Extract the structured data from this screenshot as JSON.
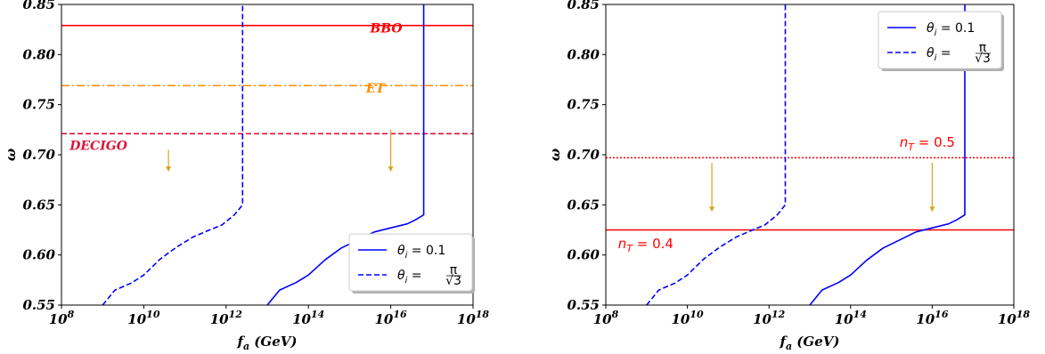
{
  "chart_data": [
    {
      "type": "line",
      "xlabel": "f_a (GeV)",
      "xlabel_main": "f",
      "xlabel_sub": "a",
      "xlabel_unit": "(GeV)",
      "ylabel": "ω",
      "x_scale": "log",
      "xlim": [
        100000000.0,
        1e+18
      ],
      "ylim": [
        0.55,
        0.85
      ],
      "x_ticks": [
        {
          "exp": 8,
          "base": "10",
          "power": "8"
        },
        {
          "exp": 10,
          "base": "10",
          "power": "10"
        },
        {
          "exp": 12,
          "base": "10",
          "power": "12"
        },
        {
          "exp": 14,
          "base": "10",
          "power": "14"
        },
        {
          "exp": 16,
          "base": "10",
          "power": "16"
        },
        {
          "exp": 18,
          "base": "10",
          "power": "18"
        }
      ],
      "y_ticks": [
        "0.55",
        "0.60",
        "0.65",
        "0.70",
        "0.75",
        "0.80",
        "0.85"
      ],
      "y_tick_values": [
        0.55,
        0.6,
        0.65,
        0.7,
        0.75,
        0.8,
        0.85
      ],
      "legend_position": "lower right",
      "series": [
        {
          "name": "θ_i = 0.1",
          "label_main": "θ",
          "label_sub": "i",
          "label_rest": " = 0.1",
          "color": "#0000ff",
          "style": "solid",
          "points": [
            [
              13.0,
              0.55
            ],
            [
              13.3,
              0.565
            ],
            [
              13.7,
              0.5725
            ],
            [
              14.0,
              0.58
            ],
            [
              14.4,
              0.595
            ],
            [
              14.8,
              0.607
            ],
            [
              15.2,
              0.615
            ],
            [
              15.6,
              0.623
            ],
            [
              16.0,
              0.627
            ],
            [
              16.4,
              0.631
            ],
            [
              16.6,
              0.635
            ],
            [
              16.8,
              0.64
            ],
            [
              16.8,
              0.85
            ]
          ],
          "x_is_log10": true
        },
        {
          "name": "θ_i = π/√3",
          "label_main": "θ",
          "label_sub": "i",
          "label_rest": " = ",
          "label_frac_num": "π",
          "label_frac_den": "√3",
          "color": "#0000ff",
          "style": "dashed",
          "points": [
            [
              9.0,
              0.55
            ],
            [
              9.3,
              0.565
            ],
            [
              9.7,
              0.572
            ],
            [
              10.0,
              0.58
            ],
            [
              10.4,
              0.596
            ],
            [
              10.8,
              0.608
            ],
            [
              11.2,
              0.618
            ],
            [
              11.6,
              0.625
            ],
            [
              11.9,
              0.63
            ],
            [
              12.2,
              0.64
            ],
            [
              12.4,
              0.65
            ],
            [
              12.4,
              0.85
            ]
          ],
          "x_is_log10": true
        }
      ],
      "hlines": [
        {
          "name": "BBO",
          "y": 0.829,
          "color": "#ff0000",
          "style": "solid",
          "label": "BBO",
          "label_x_log10": 15.5,
          "label_y": 0.822
        },
        {
          "name": "ET",
          "y": 0.769,
          "color": "#ff8c00",
          "style": "dashdot",
          "label": "ET",
          "label_x_log10": 15.4,
          "label_y": 0.762
        },
        {
          "name": "DECIGO",
          "y": 0.721,
          "color": "#dc143c",
          "style": "dashed",
          "label": "DECIGO",
          "label_x_log10": 8.2,
          "label_y": 0.705
        }
      ],
      "arrows": [
        {
          "x_log10": 10.6,
          "y_from": 0.705,
          "y_to": 0.683,
          "color": "#daa520"
        },
        {
          "x_log10": 16.0,
          "y_from": 0.725,
          "y_to": 0.683,
          "color": "#daa520"
        }
      ]
    },
    {
      "type": "line",
      "xlabel": "f_a (GeV)",
      "xlabel_main": "f",
      "xlabel_sub": "a",
      "xlabel_unit": "(GeV)",
      "ylabel": "ω",
      "x_scale": "log",
      "xlim": [
        100000000.0,
        1e+18
      ],
      "ylim": [
        0.55,
        0.85
      ],
      "x_ticks": [
        {
          "exp": 8,
          "base": "10",
          "power": "8"
        },
        {
          "exp": 10,
          "base": "10",
          "power": "10"
        },
        {
          "exp": 12,
          "base": "10",
          "power": "12"
        },
        {
          "exp": 14,
          "base": "10",
          "power": "14"
        },
        {
          "exp": 16,
          "base": "10",
          "power": "16"
        },
        {
          "exp": 18,
          "base": "10",
          "power": "18"
        }
      ],
      "y_ticks": [
        "0.55",
        "0.60",
        "0.65",
        "0.70",
        "0.75",
        "0.80",
        "0.85"
      ],
      "y_tick_values": [
        0.55,
        0.6,
        0.65,
        0.7,
        0.75,
        0.8,
        0.85
      ],
      "legend_position": "upper right",
      "series": [
        {
          "name": "θ_i = 0.1",
          "label_main": "θ",
          "label_sub": "i",
          "label_rest": " = 0.1",
          "color": "#0000ff",
          "style": "solid",
          "points": [
            [
              13.0,
              0.55
            ],
            [
              13.3,
              0.565
            ],
            [
              13.7,
              0.5725
            ],
            [
              14.0,
              0.58
            ],
            [
              14.4,
              0.595
            ],
            [
              14.8,
              0.607
            ],
            [
              15.2,
              0.615
            ],
            [
              15.6,
              0.623
            ],
            [
              16.0,
              0.627
            ],
            [
              16.4,
              0.631
            ],
            [
              16.6,
              0.635
            ],
            [
              16.8,
              0.64
            ],
            [
              16.8,
              0.85
            ]
          ],
          "x_is_log10": true
        },
        {
          "name": "θ_i = π/√3",
          "label_main": "θ",
          "label_sub": "i",
          "label_rest": " = ",
          "label_frac_num": "π",
          "label_frac_den": "√3",
          "color": "#0000ff",
          "style": "dashed",
          "points": [
            [
              9.0,
              0.55
            ],
            [
              9.3,
              0.565
            ],
            [
              9.7,
              0.572
            ],
            [
              10.0,
              0.58
            ],
            [
              10.4,
              0.596
            ],
            [
              10.8,
              0.608
            ],
            [
              11.2,
              0.618
            ],
            [
              11.6,
              0.625
            ],
            [
              11.9,
              0.63
            ],
            [
              12.2,
              0.64
            ],
            [
              12.4,
              0.65
            ],
            [
              12.4,
              0.85
            ]
          ],
          "x_is_log10": true
        }
      ],
      "hlines": [
        {
          "name": "n_T = 0.5",
          "y": 0.697,
          "color": "#ff0000",
          "style": "dotted",
          "label_main": "n",
          "label_sub": "T",
          "label_rest": " = 0.5",
          "label_x_log10": 15.2,
          "label_y": 0.708
        },
        {
          "name": "n_T = 0.4",
          "y": 0.625,
          "color": "#ff0000",
          "style": "solid",
          "label_main": "n",
          "label_sub": "T",
          "label_rest": " = 0.4",
          "label_x_log10": 8.3,
          "label_y": 0.607
        }
      ],
      "arrows": [
        {
          "x_log10": 10.6,
          "y_from": 0.692,
          "y_to": 0.643,
          "color": "#daa520"
        },
        {
          "x_log10": 16.0,
          "y_from": 0.692,
          "y_to": 0.643,
          "color": "#daa520"
        }
      ]
    }
  ],
  "colors": {
    "curve": "#0000ff",
    "bbo": "#ff0000",
    "et": "#ff8c00",
    "decigo": "#dc143c",
    "arrow": "#daa520",
    "nt": "#ff0000"
  }
}
